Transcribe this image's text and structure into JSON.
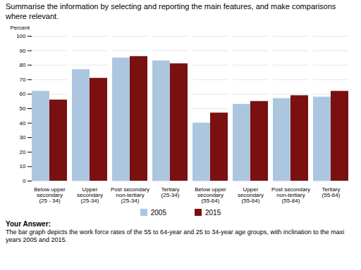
{
  "chart_data": {
    "type": "bar",
    "title": "Summarise the information by selecting and reporting the main features, and make comparisons where relevant.",
    "ylabel": "Percent",
    "categories": [
      "Below upper\nsecondary\n(25 - 34)",
      "Upper\nsecondary\n(25-34)",
      "Post secondary\nnon-tertiary\n(25-34)",
      "Tertiary\n(25-34)",
      "Below upper\nsecondary\n(55-64)",
      "Upper\nsecondary\n(55-64)",
      "Post secondary\nnon-tertiary\n(55-84)",
      "Tertiary\n(55-64)"
    ],
    "series": [
      {
        "name": "2005",
        "color": "#adc6e0",
        "values": [
          62,
          77,
          85,
          83,
          40,
          53,
          57,
          58
        ]
      },
      {
        "name": "2015",
        "color": "#7a1010",
        "values": [
          56,
          71,
          86,
          81,
          47,
          55,
          59,
          62
        ]
      }
    ],
    "ylim": [
      0,
      100
    ],
    "yticks": [
      0,
      10,
      20,
      30,
      40,
      50,
      60,
      70,
      80,
      90,
      100
    ],
    "grid": true,
    "legend": "bottom",
    "annotations": [
      "Your Answer:",
      "The bar graph depicts the work force rates of the 55 to 64-year and 25 to 34-year age groups, with inclination to the maxi",
      "years 2005 and 2015."
    ]
  }
}
